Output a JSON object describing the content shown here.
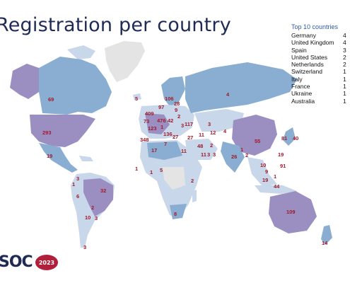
{
  "slide": {
    "title": "Registration per country"
  },
  "top10": {
    "heading": "Top 10 countries",
    "rows": [
      {
        "country": "Germany",
        "value": "4"
      },
      {
        "country": "United Kingdom",
        "value": "4"
      },
      {
        "country": "Spain",
        "value": "3"
      },
      {
        "country": "United States",
        "value": "2"
      },
      {
        "country": "Netherlands",
        "value": "2"
      },
      {
        "country": "Switzerland",
        "value": "1"
      },
      {
        "country": "Italy",
        "value": "1"
      },
      {
        "country": "France",
        "value": "1"
      },
      {
        "country": "Ukraine",
        "value": "1"
      },
      {
        "country": "Australia",
        "value": "1"
      }
    ]
  },
  "map": {
    "colors": {
      "light": "#c9d7ea",
      "medium": "#8aaed2",
      "purple": "#9b8fc2",
      "nodata": "#e4e4e4",
      "label": "#a11a2c"
    },
    "labels": [
      {
        "text": "69"
      },
      {
        "text": "293"
      },
      {
        "text": "19"
      },
      {
        "text": "5"
      },
      {
        "text": "106"
      },
      {
        "text": "97"
      },
      {
        "text": "28"
      },
      {
        "text": "9"
      },
      {
        "text": "409"
      },
      {
        "text": "2"
      },
      {
        "text": "73"
      },
      {
        "text": "476"
      },
      {
        "text": "42"
      },
      {
        "text": "123"
      },
      {
        "text": "1"
      },
      {
        "text": "3"
      },
      {
        "text": "117"
      },
      {
        "text": "348"
      },
      {
        "text": "136"
      },
      {
        "text": "27"
      },
      {
        "text": "4"
      },
      {
        "text": "11"
      },
      {
        "text": "12"
      },
      {
        "text": "3"
      },
      {
        "text": "4"
      },
      {
        "text": "17"
      },
      {
        "text": "7"
      },
      {
        "text": "27"
      },
      {
        "text": "11"
      },
      {
        "text": "48"
      },
      {
        "text": "2"
      },
      {
        "text": "55"
      },
      {
        "text": "81"
      },
      {
        "text": "40"
      },
      {
        "text": "11"
      },
      {
        "text": "3"
      },
      {
        "text": "3"
      },
      {
        "text": "26"
      },
      {
        "text": "1"
      },
      {
        "text": "2"
      },
      {
        "text": "19"
      },
      {
        "text": "10"
      },
      {
        "text": "91"
      },
      {
        "text": "9"
      },
      {
        "text": "1"
      },
      {
        "text": "19"
      },
      {
        "text": "44"
      },
      {
        "text": "1"
      },
      {
        "text": "1"
      },
      {
        "text": "5"
      },
      {
        "text": "2"
      },
      {
        "text": "1"
      },
      {
        "text": "3"
      },
      {
        "text": "32"
      },
      {
        "text": "6"
      },
      {
        "text": "2"
      },
      {
        "text": "10"
      },
      {
        "text": "3"
      },
      {
        "text": "3"
      },
      {
        "text": "8"
      },
      {
        "text": "109"
      },
      {
        "text": "14"
      }
    ]
  },
  "logo": {
    "text": "SOC",
    "year": "2023"
  }
}
